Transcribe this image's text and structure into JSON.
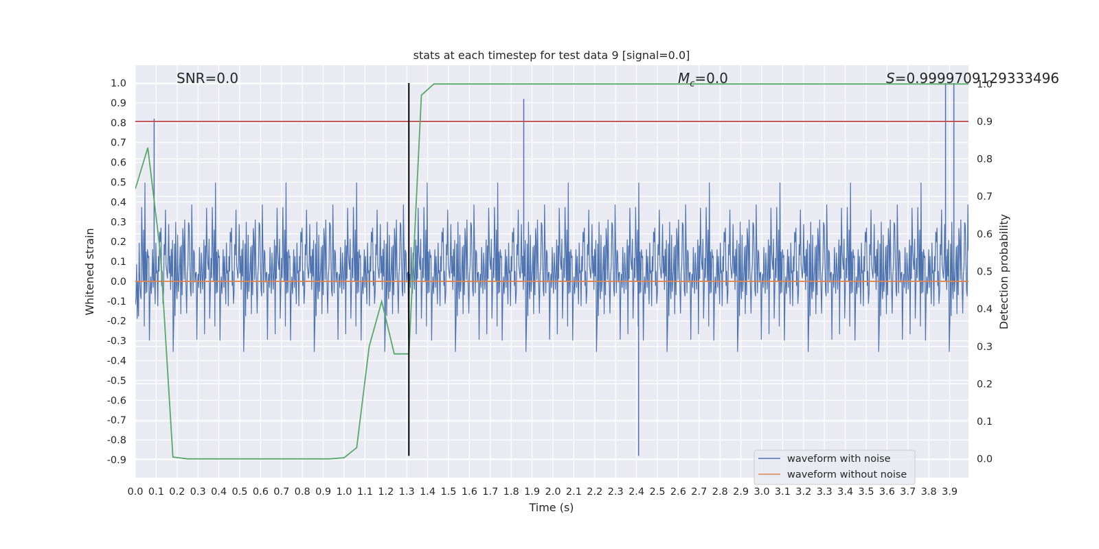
{
  "chart_data": {
    "type": "line",
    "title": "stats at each timestep for test data 9 [signal=0.0]",
    "xlabel": "Time (s)",
    "ylabel": "Whitened strain",
    "y2label": "Detection probability",
    "xlim": [
      0.0,
      3.99
    ],
    "ylim": [
      -0.99,
      1.09
    ],
    "y2lim": [
      -0.05,
      1.05
    ],
    "x_ticks": [
      "0.0",
      "0.1",
      "0.2",
      "0.3",
      "0.4",
      "0.5",
      "0.6",
      "0.7",
      "0.8",
      "0.9",
      "1.0",
      "1.1",
      "1.2",
      "1.3",
      "1.4",
      "1.5",
      "1.6",
      "1.7",
      "1.8",
      "1.9",
      "2.0",
      "2.1",
      "2.2",
      "2.3",
      "2.4",
      "2.5",
      "2.6",
      "2.7",
      "2.8",
      "2.9",
      "3.0",
      "3.1",
      "3.2",
      "3.3",
      "3.4",
      "3.5",
      "3.6",
      "3.7",
      "3.8",
      "3.9"
    ],
    "y_ticks": [
      "1.0",
      "0.9",
      "0.8",
      "0.7",
      "0.6",
      "0.5",
      "0.4",
      "0.3",
      "0.2",
      "0.1",
      "0.0",
      "-0.1",
      "-0.2",
      "-0.3",
      "-0.4",
      "-0.5",
      "-0.6",
      "-0.7",
      "-0.8",
      "-0.9"
    ],
    "y2_ticks": [
      "1.0",
      "0.9",
      "0.8",
      "0.7",
      "0.6",
      "0.5",
      "0.4",
      "0.3",
      "0.2",
      "0.1",
      "0.0"
    ],
    "grid": true,
    "legend_placement": "lower-right",
    "annotations": {
      "snr": "SNR=0.0",
      "mc_symbol": "M",
      "mc_sub": "c",
      "mc_value": "=0.0",
      "s_symbol": "S",
      "s_value": "=0.9999709129333496"
    },
    "series": [
      {
        "name": "waveform with noise",
        "color": "#4c72b0",
        "axis": "left",
        "kind": "noise",
        "noise_range": [
          -0.88,
          1.0
        ],
        "note_peaks": [
          [
            0.09,
            0.82
          ],
          [
            1.86,
            0.92
          ],
          [
            2.41,
            -0.88
          ],
          [
            3.88,
            1.0
          ],
          [
            3.92,
            1.0
          ]
        ]
      },
      {
        "name": "waveform without noise",
        "color": "#dd8452",
        "axis": "left",
        "x": [
          0.0,
          3.99
        ],
        "y": [
          0.0,
          0.0
        ]
      },
      {
        "color": "#55a868",
        "axis": "right",
        "x": [
          0.0,
          0.06,
          0.12,
          0.18,
          0.25,
          0.31,
          0.37,
          0.43,
          0.5,
          0.56,
          0.62,
          0.68,
          0.75,
          0.81,
          0.87,
          0.93,
          1.0,
          1.06,
          1.12,
          1.18,
          1.24,
          1.31,
          1.37,
          1.43,
          1.5,
          1.6,
          2.0,
          2.5,
          3.0,
          3.5,
          3.99
        ],
        "y": [
          0.72,
          0.83,
          0.55,
          0.005,
          0.0,
          0.0,
          0.0,
          0.0,
          0.0,
          0.0,
          0.0,
          0.0,
          0.0,
          0.0,
          0.0,
          0.0,
          0.003,
          0.03,
          0.3,
          0.42,
          0.28,
          0.28,
          0.97,
          1.0,
          1.0,
          1.0,
          1.0,
          1.0,
          1.0,
          1.0,
          1.0
        ]
      },
      {
        "color": "#c44e52",
        "axis": "right",
        "kind": "hline",
        "y": 0.9
      },
      {
        "color": "#000000",
        "axis": "left",
        "kind": "vline",
        "x": 1.31,
        "y": [
          -0.88,
          1.0
        ]
      }
    ]
  }
}
